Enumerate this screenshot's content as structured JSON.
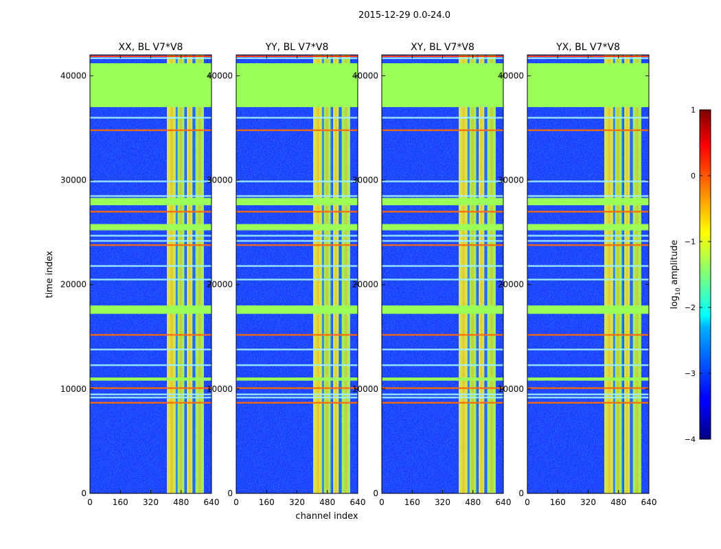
{
  "figure": {
    "suptitle": "2015-12-29 0.0-24.0"
  },
  "chart_data": {
    "type": "heatmap",
    "colormap": "jet",
    "xlabel": "channel index",
    "ylabel": "time index",
    "xlim": [
      0,
      640
    ],
    "ylim": [
      0,
      42000
    ],
    "xticks": [
      0,
      160,
      320,
      480,
      640
    ],
    "yticks": [
      0,
      10000,
      20000,
      30000,
      40000
    ],
    "panels": [
      {
        "title": "XX, BL V7*V8"
      },
      {
        "title": "YY, BL V7*V8"
      },
      {
        "title": "XY, BL V7*V8"
      },
      {
        "title": "YX, BL V7*V8"
      }
    ],
    "flagged_time_ranges": [
      [
        37000,
        41200
      ],
      [
        27600,
        28300
      ],
      [
        25200,
        25800
      ],
      [
        17200,
        18000
      ],
      [
        10800,
        11100
      ]
    ],
    "rfi_rows": [
      8700,
      9200,
      9500,
      10100,
      12300,
      13800,
      15200,
      20500,
      21800,
      23800,
      24200,
      24700,
      27000,
      28500,
      29900,
      34800,
      36000,
      41700
    ],
    "bright_channel_bands": [
      [
        405,
        455
      ],
      [
        455,
        500
      ],
      [
        510,
        540
      ],
      [
        555,
        600
      ]
    ],
    "colorbar": {
      "label": "log10 amplitude",
      "label_prefix": "log",
      "label_subscript": "10",
      "label_suffix": " amplitude",
      "range": [
        -4,
        1
      ],
      "ticks": [
        1,
        0,
        -1,
        -2,
        -3,
        -4
      ],
      "tick_labels": [
        "1",
        "0",
        "−1",
        "−2",
        "−3",
        "−4"
      ]
    }
  }
}
